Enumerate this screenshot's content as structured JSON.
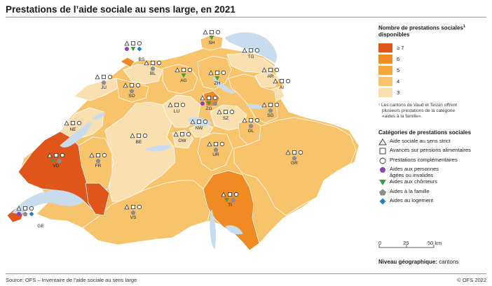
{
  "title": "Prestations de l’aide sociale au sens large, en 2021",
  "source": "Source: OFS – Inventaire de l’aide sociale au sens large",
  "copyright": "© OFS 2022",
  "legend": {
    "count_title_line1": "Nombre de prestations sociales",
    "count_title_sup": "1",
    "count_title_line2": "disponibles",
    "classes": [
      {
        "label": "≥ 7",
        "color": "#e0561a"
      },
      {
        "label": "6",
        "color": "#f08a22"
      },
      {
        "label": "5",
        "color": "#f5a83a"
      },
      {
        "label": "4",
        "color": "#f7c46c"
      },
      {
        "label": "3",
        "color": "#fae0b0"
      }
    ],
    "note_line1": "¹ Les cantons de Vaud et Tessin offrent",
    "note_line2": "plusieurs prestations de la catégorie",
    "note_line3": "«aides à la famille».",
    "categories_title": "Catégories de prestations sociales",
    "categories": [
      {
        "label": "Aide sociale au sens strict",
        "icon": "triangle-outline-icon"
      },
      {
        "label": "Avances sur pensions alimentaires",
        "icon": "square-outline-icon"
      },
      {
        "label": "Prestations complémentaires",
        "icon": "circle-outline-icon"
      },
      {
        "label1": "Aides aux personnes",
        "label2": "âgées ou invalides",
        "icon": "purple-circle-icon",
        "color": "#8e44ad"
      },
      {
        "label": "Aides aux chômeurs",
        "icon": "green-triangle-icon",
        "color": "#3aa041"
      },
      {
        "label": "Aides à la famille",
        "icon": "grey-pentagon-icon",
        "color": "#8c8c8c"
      },
      {
        "label": "Aides au logement",
        "icon": "blue-diamond-icon",
        "color": "#1f7fc4"
      }
    ]
  },
  "scale": {
    "t0": "0",
    "t1": "25",
    "t2": "50 km"
  },
  "level": {
    "label": "Niveau géographique:",
    "value": "cantons"
  },
  "cantons": [
    {
      "code": "SH",
      "count": 4
    },
    {
      "code": "BS",
      "count": 6
    },
    {
      "code": "TG",
      "count": 3
    },
    {
      "code": "BL",
      "count": 3
    },
    {
      "code": "AG",
      "count": 4
    },
    {
      "code": "ZH",
      "count": 4
    },
    {
      "code": "JU",
      "count": 3
    },
    {
      "code": "AR",
      "count": 3
    },
    {
      "code": "AI",
      "count": 3
    },
    {
      "code": "SO",
      "count": 4
    },
    {
      "code": "ZG",
      "count": 6
    },
    {
      "code": "SG",
      "count": 4
    },
    {
      "code": "LU",
      "count": 3
    },
    {
      "code": "SZ",
      "count": 3
    },
    {
      "code": "NE",
      "count": 3
    },
    {
      "code": "GL",
      "count": 4
    },
    {
      "code": "NW",
      "count": 3
    },
    {
      "code": "OW",
      "count": 3
    },
    {
      "code": "BE",
      "count": 3
    },
    {
      "code": "UR",
      "count": 4
    },
    {
      "code": "GR",
      "count": 4
    },
    {
      "code": "VD",
      "count": 7
    },
    {
      "code": "FR",
      "count": 4
    },
    {
      "code": "TI",
      "count": 6
    },
    {
      "code": "VS",
      "count": 4
    },
    {
      "code": "GE",
      "count": 7
    }
  ]
}
